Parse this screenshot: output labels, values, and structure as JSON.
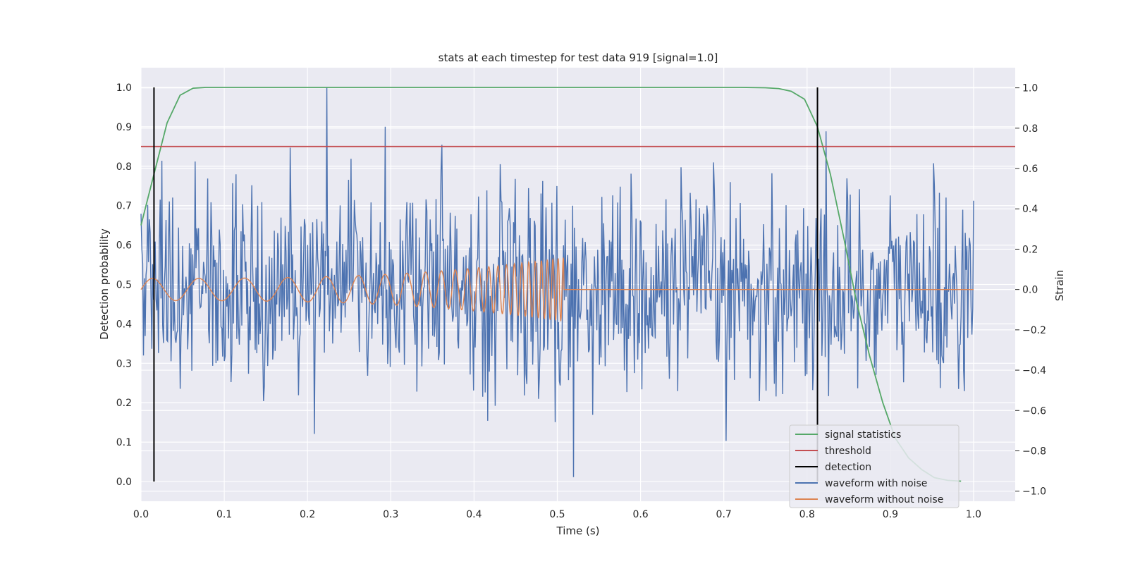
{
  "chart_data": {
    "type": "line",
    "title": "stats at each timestep for test data 919 [signal=1.0]",
    "xlabel": "Time (s)",
    "ylabel": "Detection probability",
    "y2label": "Strain",
    "xlim": [
      0.0,
      1.05
    ],
    "ylim": [
      -0.05,
      1.05
    ],
    "y2lim": [
      -1.05,
      1.1
    ],
    "xticks": [
      "0.0",
      "0.1",
      "0.2",
      "0.3",
      "0.4",
      "0.5",
      "0.6",
      "0.7",
      "0.8",
      "0.9",
      "1.0"
    ],
    "yticks": [
      "0.0",
      "0.1",
      "0.2",
      "0.3",
      "0.4",
      "0.5",
      "0.6",
      "0.7",
      "0.8",
      "0.9",
      "1.0"
    ],
    "y2ticks": [
      "−1.0",
      "−0.8",
      "−0.6",
      "−0.4",
      "−0.2",
      "0.0",
      "0.2",
      "0.4",
      "0.6",
      "0.8",
      "1.0"
    ],
    "grid": true,
    "legend_position": "lower-right",
    "series": [
      {
        "name": "signal statistics",
        "axis": "left",
        "color": "#55a868",
        "x": [
          0.0,
          0.0156,
          0.0313,
          0.0469,
          0.0625,
          0.0781,
          0.1,
          0.2,
          0.4,
          0.6,
          0.72,
          0.75,
          0.766,
          0.781,
          0.797,
          0.8125,
          0.828,
          0.844,
          0.859,
          0.875,
          0.891,
          0.906,
          0.922,
          0.938,
          0.953,
          0.969,
          0.985
        ],
        "y": [
          0.65,
          0.78,
          0.91,
          0.98,
          0.998,
          1.0,
          1.0,
          1.0,
          1.0,
          1.0,
          1.0,
          0.999,
          0.997,
          0.99,
          0.97,
          0.9,
          0.78,
          0.62,
          0.46,
          0.32,
          0.2,
          0.11,
          0.06,
          0.03,
          0.01,
          0.003,
          0.001
        ]
      },
      {
        "name": "threshold",
        "axis": "left",
        "color": "#c44e52",
        "y": 0.85
      },
      {
        "name": "detection",
        "axis": "left",
        "color": "#000000",
        "x": [
          0.0156,
          0.8125
        ],
        "y_range": [
          0.0,
          1.0
        ]
      },
      {
        "name": "waveform with noise",
        "axis": "right",
        "color": "#4c72b0",
        "x_range": [
          0.0,
          1.0
        ],
        "y_min": -0.93,
        "y_max": 1.0
      },
      {
        "name": "waveform without noise",
        "axis": "right",
        "color": "#dd8452",
        "x_range": [
          0.0,
          1.0
        ],
        "chirp_end": 0.508,
        "amplitude_end": 0.16
      }
    ]
  }
}
